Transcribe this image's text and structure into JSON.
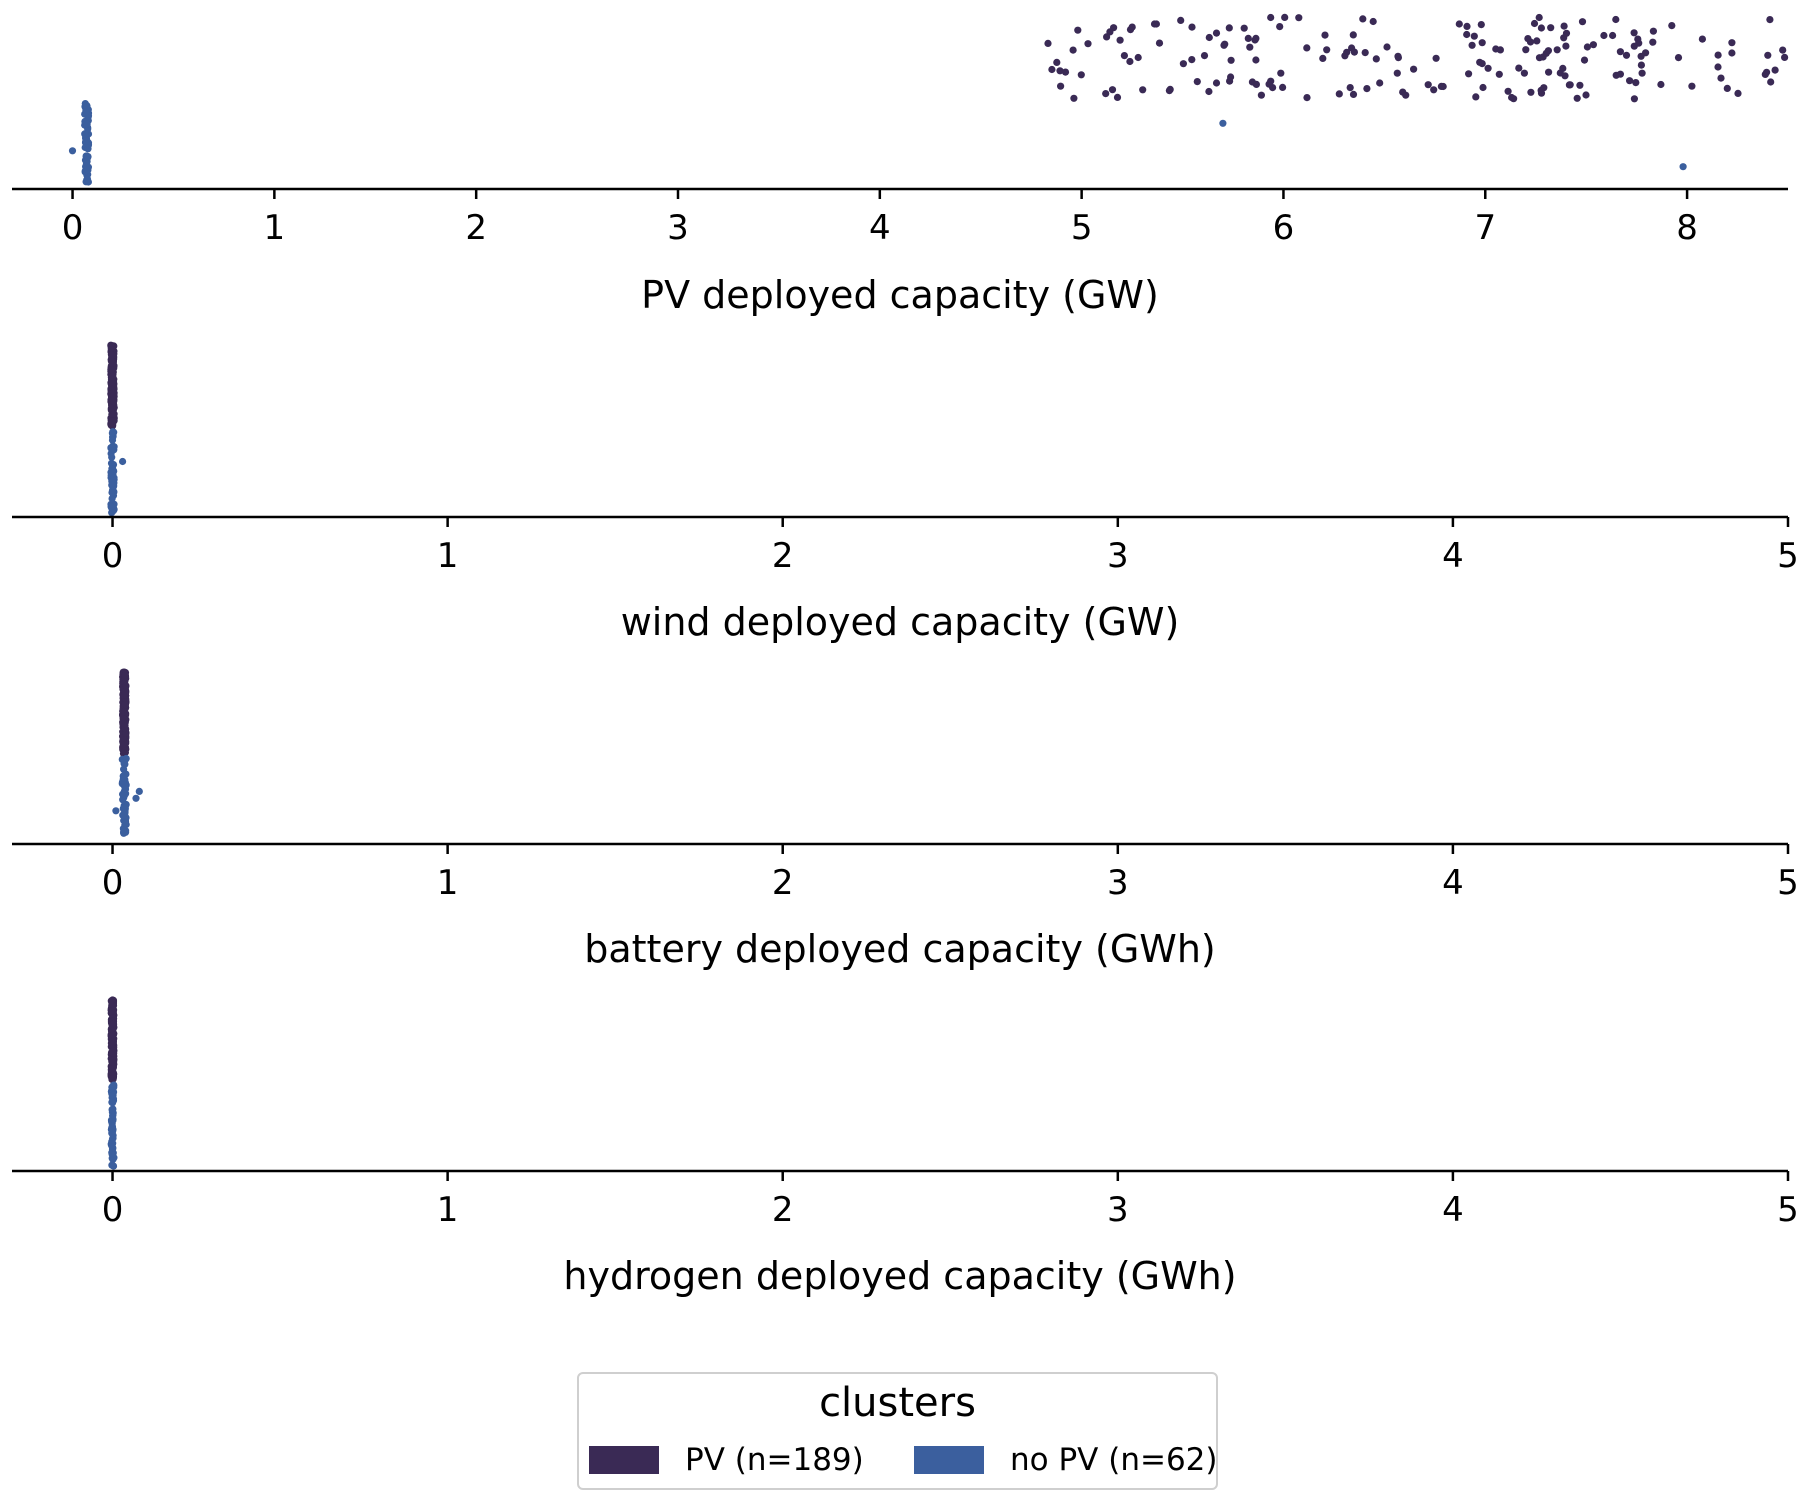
{
  "chart_data": {
    "type": "strip",
    "legend": {
      "title": "clusters",
      "placement": "bottom-center",
      "entries": [
        {
          "label": "PV (n=189)",
          "color": "#3a2a55"
        },
        {
          "label": "no PV (n=62)",
          "color": "#3b5f9e"
        }
      ]
    },
    "series": [
      {
        "name": "PV (n=189)",
        "color": "#3a2a55",
        "n": 189
      },
      {
        "name": "no PV (n=62)",
        "color": "#3b5f9e",
        "n": 62
      }
    ],
    "panels": [
      {
        "xlabel": "PV deployed capacity (GW)",
        "xlim": [
          -0.3,
          8.5
        ],
        "ticks": [
          "0",
          "1",
          "2",
          "3",
          "4",
          "5",
          "6",
          "7",
          "8"
        ],
        "distributions": {
          "PV (n=189)": {
            "min": 4.8,
            "max": 8.5,
            "center": 6.6
          },
          "no PV (n=62)": {
            "center": 0.07,
            "spread": 0.01,
            "outliers": [
              0.0,
              5.7,
              7.98
            ]
          }
        }
      },
      {
        "xlabel": "wind deployed capacity (GW)",
        "xlim": [
          -0.3,
          5
        ],
        "ticks": [
          "0",
          "1",
          "2",
          "3",
          "4",
          "5"
        ],
        "distributions": {
          "PV (n=189)": {
            "center": 0.0,
            "spread": 0.005
          },
          "no PV (n=62)": {
            "center": 0.0,
            "spread": 0.005,
            "outliers": [
              0.03
            ]
          }
        }
      },
      {
        "xlabel": "battery deployed capacity (GWh)",
        "xlim": [
          -0.3,
          5
        ],
        "ticks": [
          "0",
          "1",
          "2",
          "3",
          "4",
          "5"
        ],
        "distributions": {
          "PV (n=189)": {
            "center": 0.035,
            "spread": 0.005
          },
          "no PV (n=62)": {
            "center": 0.035,
            "spread": 0.006,
            "outliers": [
              0.01,
              0.07,
              0.08
            ]
          }
        }
      },
      {
        "xlabel": "hydrogen deployed capacity (GWh)",
        "xlim": [
          -0.3,
          5
        ],
        "ticks": [
          "0",
          "1",
          "2",
          "3",
          "4",
          "5"
        ],
        "distributions": {
          "PV (n=189)": {
            "center": 0.0,
            "spread": 0.004
          },
          "no PV (n=62)": {
            "center": 0.0,
            "spread": 0.004
          }
        }
      }
    ]
  }
}
